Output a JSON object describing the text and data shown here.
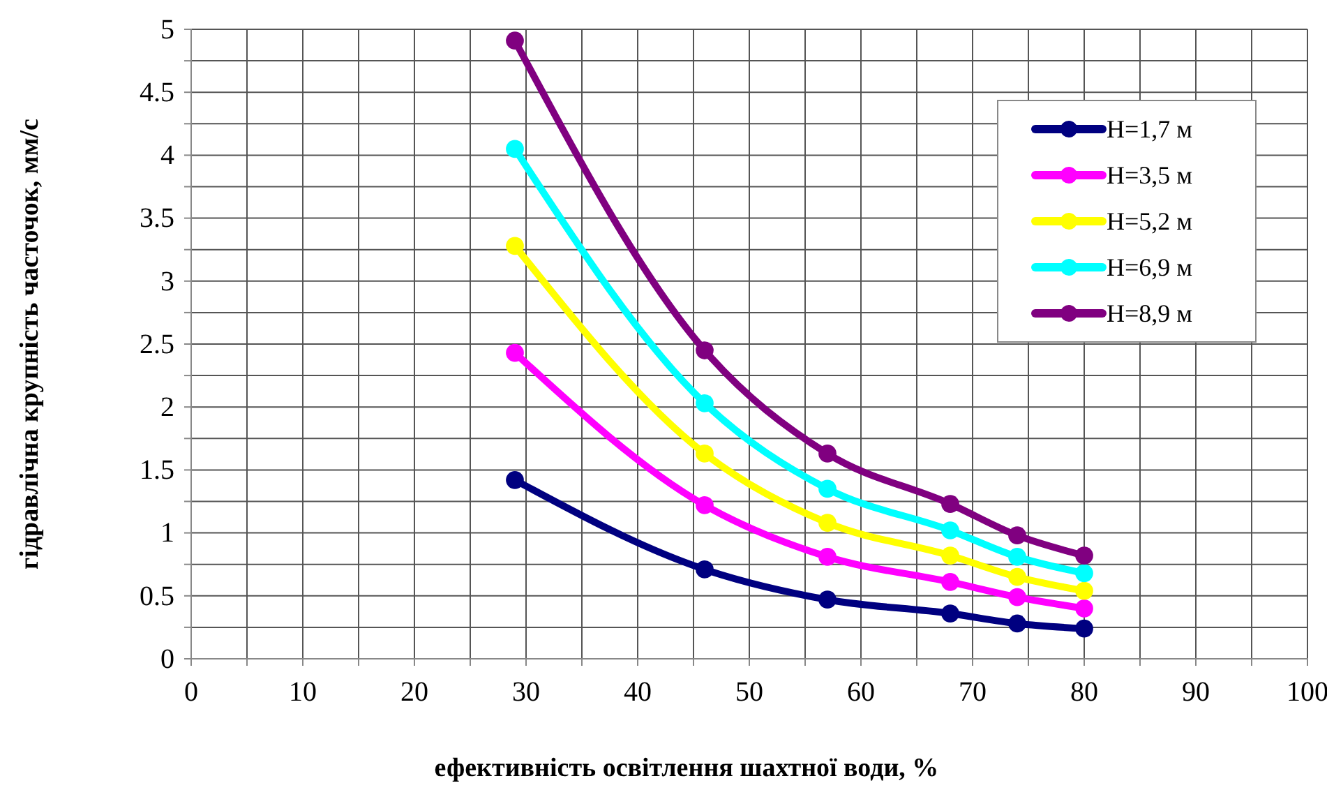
{
  "chart_data": {
    "type": "line",
    "xlabel": "ефективність освітлення шахтної води, %",
    "ylabel": "гідравлічна крупність часточок, мм/с",
    "x": [
      29,
      46,
      57,
      68,
      74,
      80
    ],
    "series": [
      {
        "name": "H=1,7 м",
        "color": "#000080",
        "values": [
          1.42,
          0.71,
          0.47,
          0.36,
          0.28,
          0.24
        ]
      },
      {
        "name": "H=3,5 м",
        "color": "#ff00ff",
        "values": [
          2.43,
          1.22,
          0.81,
          0.61,
          0.49,
          0.4
        ]
      },
      {
        "name": "H=5,2 м",
        "color": "#ffff00",
        "values": [
          3.28,
          1.63,
          1.08,
          0.82,
          0.65,
          0.54
        ]
      },
      {
        "name": "H=6,9 м",
        "color": "#00ffff",
        "values": [
          4.05,
          2.03,
          1.35,
          1.02,
          0.81,
          0.68
        ]
      },
      {
        "name": "H=8,9 м",
        "color": "#800080",
        "values": [
          4.91,
          2.45,
          1.63,
          1.23,
          0.98,
          0.82
        ]
      }
    ],
    "xlim": [
      0,
      100
    ],
    "xticks": [
      0,
      {
        "value": 5,
        "label": null
      },
      10,
      {
        "value": 15,
        "label": null
      },
      20,
      {
        "value": 25,
        "label": null
      },
      30,
      {
        "value": 35,
        "label": null
      },
      40,
      {
        "value": 45,
        "label": null
      },
      50,
      {
        "value": 55,
        "label": null
      },
      60,
      {
        "value": 65,
        "label": null
      },
      70,
      {
        "value": 75,
        "label": null
      },
      80,
      {
        "value": 85,
        "label": null
      },
      90,
      {
        "value": 95,
        "label": null
      },
      100
    ],
    "ylim": [
      0,
      5
    ],
    "yticks": [
      0,
      {
        "value": 0.25,
        "label": null
      },
      0.5,
      {
        "value": 0.75,
        "label": null
      },
      1,
      {
        "value": 1.25,
        "label": null
      },
      1.5,
      {
        "value": 1.75,
        "label": null
      },
      2,
      {
        "value": 2.25,
        "label": null
      },
      2.5,
      {
        "value": 2.75,
        "label": null
      },
      3,
      {
        "value": 3.25,
        "label": null
      },
      3.5,
      {
        "value": 3.75,
        "label": null
      },
      4,
      {
        "value": 4.25,
        "label": null
      },
      4.5,
      {
        "value": 4.75,
        "label": null
      },
      5
    ],
    "grid": true,
    "legend": "top right",
    "marker": "circle",
    "line_style": "solid"
  }
}
